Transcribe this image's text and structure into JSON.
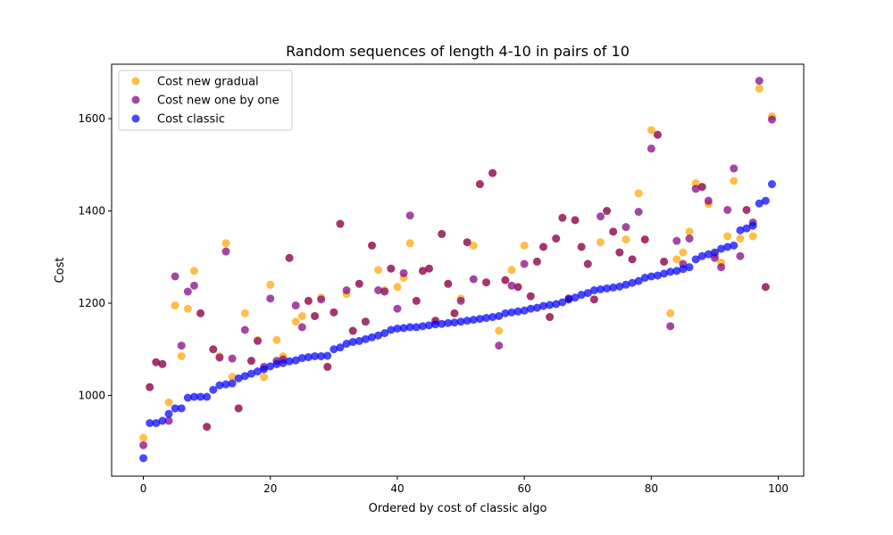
{
  "chart_data": {
    "type": "scatter",
    "title": "Random sequences of length 4-10 in pairs of 10",
    "xlabel": "Ordered by cost of classic algo",
    "ylabel": "Cost",
    "xlim": [
      -5,
      104
    ],
    "ylim": [
      825,
      1718
    ],
    "xticks": [
      0,
      20,
      40,
      60,
      80,
      100
    ],
    "yticks": [
      1000,
      1200,
      1400,
      1600
    ],
    "grid": false,
    "legend_position": "top-left",
    "series": [
      {
        "name": "Cost new gradual",
        "color": "#FFA500",
        "values": [
          908,
          1018,
          1072,
          1068,
          985,
          1195,
          1085,
          1188,
          1270,
          1178,
          932,
          1100,
          1085,
          1330,
          1040,
          972,
          1178,
          1075,
          1120,
          1040,
          1240,
          1120,
          1085,
          1298,
          1160,
          1172,
          1205,
          1172,
          1212,
          1062,
          1180,
          1372,
          1220,
          1140,
          1242,
          1160,
          1325,
          1272,
          1228,
          1275,
          1235,
          1255,
          1330,
          1205,
          1270,
          1275,
          1162,
          1350,
          1242,
          1178,
          1210,
          1332,
          1325,
          1458,
          1245,
          1482,
          1140,
          1250,
          1272,
          1235,
          1325,
          1215,
          1290,
          1322,
          1170,
          1340,
          1385,
          1210,
          1380,
          1322,
          1285,
          1208,
          1332,
          1400,
          1355,
          1310,
          1338,
          1295,
          1438,
          1338,
          1575,
          1565,
          1290,
          1178,
          1295,
          1310,
          1355,
          1460,
          1452,
          1415,
          1305,
          1288,
          1345,
          1465,
          1340,
          1402,
          1345,
          1665,
          1235,
          1605
        ]
      },
      {
        "name": "Cost new one by one",
        "color": "#800080",
        "values": [
          892,
          1018,
          1072,
          1068,
          945,
          1258,
          1108,
          1225,
          1238,
          1178,
          932,
          1100,
          1082,
          1312,
          1080,
          972,
          1142,
          1075,
          1118,
          1062,
          1210,
          1075,
          1078,
          1298,
          1195,
          1148,
          1205,
          1172,
          1208,
          1062,
          1180,
          1372,
          1228,
          1140,
          1242,
          1160,
          1325,
          1228,
          1225,
          1275,
          1188,
          1265,
          1390,
          1205,
          1270,
          1275,
          1162,
          1350,
          1242,
          1178,
          1205,
          1332,
          1252,
          1458,
          1245,
          1482,
          1108,
          1250,
          1238,
          1235,
          1285,
          1215,
          1290,
          1322,
          1170,
          1340,
          1385,
          1210,
          1380,
          1322,
          1285,
          1208,
          1388,
          1400,
          1355,
          1310,
          1365,
          1295,
          1398,
          1338,
          1535,
          1565,
          1290,
          1150,
          1335,
          1285,
          1340,
          1448,
          1452,
          1422,
          1298,
          1278,
          1402,
          1492,
          1302,
          1402,
          1375,
          1682,
          1235,
          1598
        ]
      },
      {
        "name": "Cost classic",
        "color": "#0000FF",
        "values": [
          864,
          940,
          940,
          945,
          960,
          972,
          972,
          995,
          997,
          997,
          997,
          1012,
          1022,
          1024,
          1026,
          1037,
          1042,
          1047,
          1052,
          1057,
          1063,
          1068,
          1070,
          1074,
          1076,
          1081,
          1083,
          1085,
          1085,
          1086,
          1100,
          1104,
          1112,
          1116,
          1118,
          1122,
          1126,
          1130,
          1135,
          1142,
          1145,
          1146,
          1148,
          1148,
          1150,
          1152,
          1154,
          1155,
          1157,
          1158,
          1160,
          1162,
          1164,
          1166,
          1168,
          1170,
          1172,
          1178,
          1180,
          1182,
          1184,
          1188,
          1190,
          1194,
          1196,
          1198,
          1202,
          1208,
          1212,
          1218,
          1222,
          1228,
          1230,
          1232,
          1234,
          1236,
          1240,
          1244,
          1248,
          1255,
          1258,
          1260,
          1264,
          1268,
          1270,
          1274,
          1278,
          1295,
          1302,
          1306,
          1310,
          1318,
          1322,
          1325,
          1358,
          1362,
          1368,
          1416,
          1422,
          1458
        ]
      }
    ]
  }
}
